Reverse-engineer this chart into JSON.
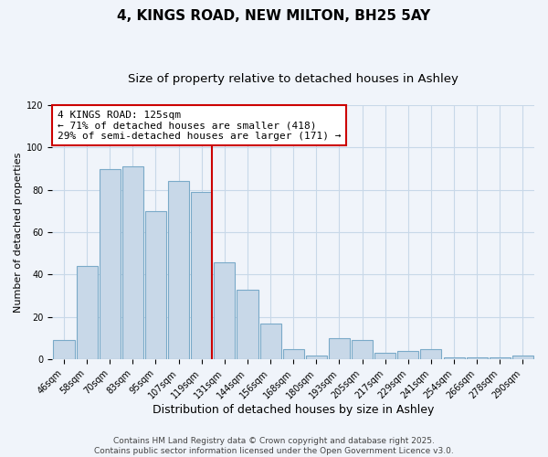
{
  "title": "4, KINGS ROAD, NEW MILTON, BH25 5AY",
  "subtitle": "Size of property relative to detached houses in Ashley",
  "xlabel": "Distribution of detached houses by size in Ashley",
  "ylabel": "Number of detached properties",
  "bar_labels": [
    "46sqm",
    "58sqm",
    "70sqm",
    "83sqm",
    "95sqm",
    "107sqm",
    "119sqm",
    "131sqm",
    "144sqm",
    "156sqm",
    "168sqm",
    "180sqm",
    "193sqm",
    "205sqm",
    "217sqm",
    "229sqm",
    "241sqm",
    "254sqm",
    "266sqm",
    "278sqm",
    "290sqm"
  ],
  "bar_values": [
    9,
    44,
    90,
    91,
    70,
    84,
    79,
    46,
    33,
    17,
    5,
    2,
    10,
    9,
    3,
    4,
    5,
    1,
    1,
    1,
    2
  ],
  "bar_color": "#c8d8e8",
  "bar_edge_color": "#7aaac8",
  "vline_color": "#cc0000",
  "annotation_title": "4 KINGS ROAD: 125sqm",
  "annotation_line1": "← 71% of detached houses are smaller (418)",
  "annotation_line2": "29% of semi-detached houses are larger (171) →",
  "box_edge_color": "#cc0000",
  "ylim": [
    0,
    120
  ],
  "yticks": [
    0,
    20,
    40,
    60,
    80,
    100,
    120
  ],
  "grid_color": "#c8d8e8",
  "background_color": "#f0f4fa",
  "footer1": "Contains HM Land Registry data © Crown copyright and database right 2025.",
  "footer2": "Contains public sector information licensed under the Open Government Licence v3.0.",
  "title_fontsize": 11,
  "subtitle_fontsize": 9.5,
  "xlabel_fontsize": 9,
  "ylabel_fontsize": 8,
  "tick_fontsize": 7,
  "annotation_fontsize": 8,
  "footer_fontsize": 6.5
}
